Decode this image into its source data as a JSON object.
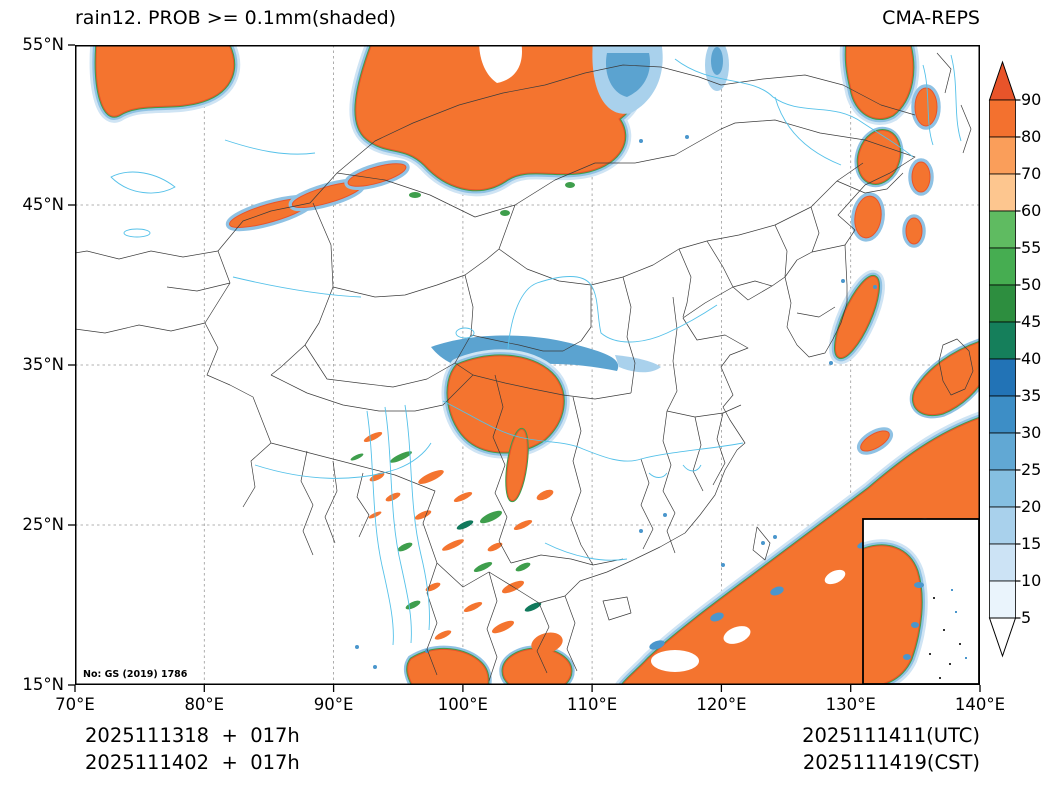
{
  "header": {
    "title": "rain12. PROB >= 0.1mm(shaded)",
    "source": "CMA-REPS"
  },
  "map": {
    "note": "No: GS (2019) 1786",
    "extent": {
      "lon_min": "70°E",
      "lon_max": "140°E",
      "lat_min": "15°N",
      "lat_max": "55°N"
    },
    "palette": {
      "high_prob_orange": "#f4742f",
      "mid_prob_green": "#3e9e4c",
      "low_prob_blue": "#4a96cc",
      "river_blue": "#55c1e9",
      "border_gray": "#3c3c3c"
    },
    "shaded_regions_summary": [
      "large high-probability area over northern Xinjiang / western Mongolia",
      "high-probability patches over northeast frontier (upper right)",
      "high-probability core over eastern Tibet / Sichuan with blue-green fringe",
      "scattered streaks over Yunnan / Myanmar",
      "large high-probability area over South China Sea and seas southeast of Taiwan",
      "streak near Korea Strait and along the eastern map edge",
      "South China Sea inset box at lower right with shading"
    ]
  },
  "axes": {
    "y_labels": [
      "55°N",
      "45°N",
      "35°N",
      "25°N",
      "15°N"
    ],
    "x_labels": [
      "70°E",
      "80°E",
      "90°E",
      "100°E",
      "110°E",
      "120°E",
      "130°E",
      "140°E"
    ]
  },
  "colorbar": {
    "tick_labels": [
      "90",
      "80",
      "70",
      "60",
      "55",
      "50",
      "45",
      "40",
      "35",
      "30",
      "25",
      "20",
      "15",
      "10",
      "5"
    ],
    "segment_colors_top_to_bottom": [
      "#f3712f",
      "#fa9e5a",
      "#fdc68f",
      "#5fbb61",
      "#46ad51",
      "#2d8e3f",
      "#157f5b",
      "#2273b6",
      "#3d8ec6",
      "#61a8d4",
      "#85bfe1",
      "#a9d1ec",
      "#cce3f5",
      "#eaf4fc"
    ],
    "arrow_top_color": "#e8542a",
    "arrow_bottom_color": "#ffffff"
  },
  "footer": {
    "init_lines": [
      "2025111318  +  017h",
      "2025111402  +  017h"
    ],
    "valid_lines": [
      "2025111411(UTC)",
      "2025111419(CST)"
    ]
  }
}
